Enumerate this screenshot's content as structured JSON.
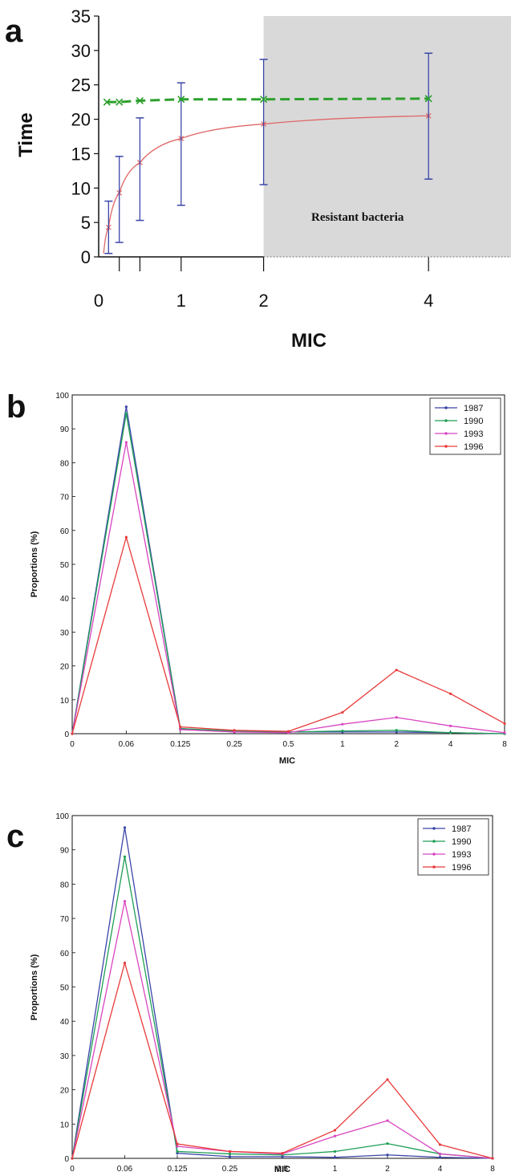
{
  "chart_data": [
    {
      "panel": "a",
      "type": "line",
      "xlabel": "MIC",
      "ylabel": "Time",
      "xlim": [
        0,
        5
      ],
      "ylim": [
        0,
        35
      ],
      "x_ticks": [
        0,
        1,
        2,
        4
      ],
      "y_ticks": [
        0,
        5,
        10,
        15,
        20,
        25,
        30,
        35
      ],
      "grid": false,
      "shaded_region": {
        "x_start": 2,
        "x_end": 5,
        "label": "Resistant bacteria",
        "color": "#d9d9d9"
      },
      "series": [
        {
          "color": "#2ca02c",
          "style": "dashed",
          "x": [
            0.1,
            0.25,
            0.5,
            1,
            2,
            4
          ],
          "y": [
            22.5,
            22.5,
            22.7,
            22.9,
            22.9,
            23.0
          ]
        },
        {
          "color": "#e06666",
          "style": "solid",
          "x": [
            0.06,
            0.12,
            0.25,
            0.5,
            1,
            2,
            4
          ],
          "y": [
            0.5,
            4.3,
            9.3,
            13.7,
            17.2,
            19.3,
            20.5
          ],
          "curve": true
        }
      ],
      "error_bars": {
        "color": "#3a45a8",
        "items": [
          {
            "x": 0.12,
            "low": 0.5,
            "high": 8.1
          },
          {
            "x": 0.25,
            "low": 2.1,
            "high": 14.6
          },
          {
            "x": 0.5,
            "low": 5.3,
            "high": 20.2
          },
          {
            "x": 1,
            "low": 7.5,
            "high": 25.3
          },
          {
            "x": 2,
            "low": 10.5,
            "high": 28.7
          },
          {
            "x": 4,
            "low": 11.3,
            "high": 29.6
          }
        ]
      }
    },
    {
      "panel": "b",
      "type": "line",
      "xlabel": "MIC",
      "ylabel": "Proportions (%)",
      "categories": [
        "0",
        "0.06",
        "0.125",
        "0.25",
        "0.5",
        "1",
        "2",
        "4",
        "8"
      ],
      "ylim": [
        0,
        100
      ],
      "y_ticks": [
        0,
        10,
        20,
        30,
        40,
        50,
        60,
        70,
        80,
        90,
        100
      ],
      "legend_position": "top-right",
      "series": [
        {
          "name": "1987",
          "color": "#3a45a8",
          "values": [
            0,
            96.5,
            1.5,
            0.5,
            0.5,
            0.5,
            0.5,
            0.3,
            0
          ]
        },
        {
          "name": "1990",
          "color": "#1e9e55",
          "values": [
            0,
            94.5,
            1.5,
            0.8,
            0.5,
            0.8,
            1,
            0.3,
            0
          ]
        },
        {
          "name": "1993",
          "color": "#d845c0",
          "values": [
            0,
            86,
            1.2,
            0.5,
            0.3,
            2.8,
            4.8,
            2.3,
            0.3
          ]
        },
        {
          "name": "1996",
          "color": "#e83a3a",
          "values": [
            0,
            58,
            2,
            1,
            0.7,
            6.3,
            18.8,
            11.8,
            3
          ]
        }
      ]
    },
    {
      "panel": "c",
      "type": "line",
      "xlabel": "MIC",
      "ylabel": "Proportions (%)",
      "categories": [
        "0",
        "0.06",
        "0.125",
        "0.25",
        "0.5",
        "1",
        "2",
        "4",
        "8"
      ],
      "ylim": [
        0,
        100
      ],
      "y_ticks": [
        0,
        10,
        20,
        30,
        40,
        50,
        60,
        70,
        80,
        90,
        100
      ],
      "legend_position": "top-right",
      "series": [
        {
          "name": "1987",
          "color": "#3a45a8",
          "values": [
            0,
            96.5,
            1.5,
            0.5,
            0.5,
            0.3,
            1,
            0.3,
            0
          ]
        },
        {
          "name": "1990",
          "color": "#1e9e55",
          "values": [
            0,
            88,
            2,
            1.3,
            1,
            2,
            4.3,
            1.3,
            0
          ]
        },
        {
          "name": "1993",
          "color": "#d845c0",
          "values": [
            0,
            75,
            3.5,
            2,
            1.3,
            6.5,
            11,
            1.3,
            0
          ]
        },
        {
          "name": "1996",
          "color": "#e83a3a",
          "values": [
            0,
            57,
            4.2,
            2,
            1.5,
            8.2,
            23,
            4,
            0
          ]
        }
      ]
    }
  ],
  "panels": {
    "a": "a",
    "b": "b",
    "c": "c"
  }
}
